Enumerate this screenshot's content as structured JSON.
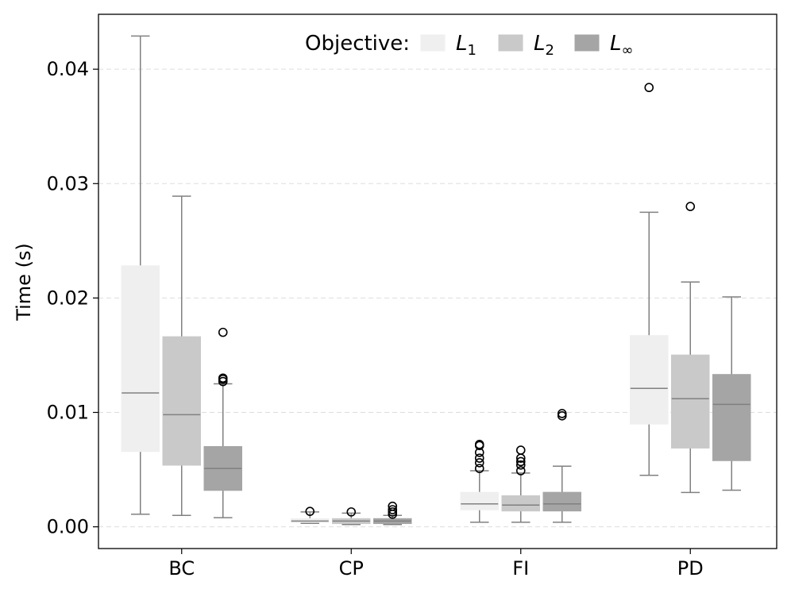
{
  "chart_data": {
    "type": "box",
    "ylabel": "Time (s)",
    "xlabel": "",
    "ylim": [
      -0.0019,
      0.0448
    ],
    "yticks": [
      0.0,
      0.01,
      0.02,
      0.03,
      0.04
    ],
    "ytick_labels": [
      "0.00",
      "0.01",
      "0.02",
      "0.03",
      "0.04"
    ],
    "grid": "horizontal-dashed",
    "categories": [
      "BC",
      "CP",
      "FI",
      "PD"
    ],
    "legend": {
      "title": "Objective:",
      "placement": "top-center",
      "entries": [
        {
          "base": "L",
          "sub": "1"
        },
        {
          "base": "L",
          "sub": "2"
        },
        {
          "base": "L",
          "sub": "∞"
        }
      ]
    },
    "series": [
      {
        "name": "L1",
        "color": "#efefef",
        "boxes": [
          {
            "category": "BC",
            "whislo": 0.0011,
            "q1": 0.0066,
            "med": 0.0117,
            "q3": 0.0228,
            "whishi": 0.0429,
            "fliers": []
          },
          {
            "category": "CP",
            "whislo": 0.0003,
            "q1": 0.0004,
            "med": 0.0005,
            "q3": 0.0007,
            "whishi": 0.0013,
            "fliers": [
              0.00135
            ]
          },
          {
            "category": "FI",
            "whislo": 0.0004,
            "q1": 0.0015,
            "med": 0.002,
            "q3": 0.003,
            "whishi": 0.0049,
            "fliers": [
              0.0051,
              0.0056,
              0.006,
              0.0065,
              0.0071,
              0.0072
            ]
          },
          {
            "category": "PD",
            "whislo": 0.0045,
            "q1": 0.009,
            "med": 0.0121,
            "q3": 0.0167,
            "whishi": 0.0275,
            "fliers": [
              0.0384
            ]
          }
        ]
      },
      {
        "name": "L2",
        "color": "#c9c9c9",
        "boxes": [
          {
            "category": "BC",
            "whislo": 0.001,
            "q1": 0.0054,
            "med": 0.0098,
            "q3": 0.0166,
            "whishi": 0.0289,
            "fliers": []
          },
          {
            "category": "CP",
            "whislo": 0.0002,
            "q1": 0.0003,
            "med": 0.0005,
            "q3": 0.0007,
            "whishi": 0.0012,
            "fliers": [
              0.0013
            ]
          },
          {
            "category": "FI",
            "whislo": 0.0004,
            "q1": 0.0014,
            "med": 0.0019,
            "q3": 0.0027,
            "whishi": 0.0047,
            "fliers": [
              0.0049,
              0.0054,
              0.0057,
              0.006,
              0.0067
            ]
          },
          {
            "category": "PD",
            "whislo": 0.003,
            "q1": 0.0069,
            "med": 0.0112,
            "q3": 0.015,
            "whishi": 0.0214,
            "fliers": [
              0.028
            ]
          }
        ]
      },
      {
        "name": "L∞",
        "color": "#a5a5a5",
        "boxes": [
          {
            "category": "BC",
            "whislo": 0.0008,
            "q1": 0.0032,
            "med": 0.0051,
            "q3": 0.007,
            "whishi": 0.0125,
            "fliers": [
              0.0127,
              0.0129,
              0.013,
              0.017
            ]
          },
          {
            "category": "CP",
            "whislo": 0.0002,
            "q1": 0.0003,
            "med": 0.0005,
            "q3": 0.0007,
            "whishi": 0.001,
            "fliers": [
              0.0011,
              0.0013,
              0.0015,
              0.0018
            ]
          },
          {
            "category": "FI",
            "whislo": 0.0004,
            "q1": 0.0014,
            "med": 0.002,
            "q3": 0.003,
            "whishi": 0.0053,
            "fliers": [
              0.0097,
              0.0099
            ]
          },
          {
            "category": "PD",
            "whislo": 0.0032,
            "q1": 0.0058,
            "med": 0.0107,
            "q3": 0.0133,
            "whishi": 0.0201,
            "fliers": []
          }
        ]
      }
    ]
  }
}
